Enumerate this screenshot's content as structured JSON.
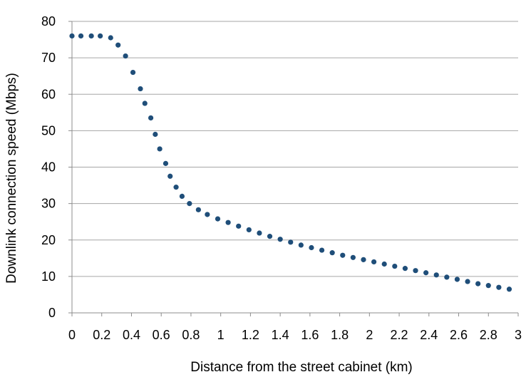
{
  "chart_data": {
    "type": "scatter",
    "title": "",
    "xlabel": "Distance from the street cabinet (km)",
    "ylabel": "Downlink connection speed (Mbps)",
    "xlim": [
      0,
      3
    ],
    "ylim": [
      0,
      80
    ],
    "xticks": [
      "0",
      "0.2",
      "0.4",
      "0.6",
      "0.8",
      "1",
      "1.2",
      "1.4",
      "1.6",
      "1.8",
      "2",
      "2.2",
      "2.4",
      "2.6",
      "2.8",
      "3"
    ],
    "yticks": [
      "0",
      "10",
      "20",
      "30",
      "40",
      "50",
      "60",
      "70",
      "80"
    ],
    "grid": "horizontal",
    "legend": "none",
    "marker_color": "#1F4E79",
    "series": [
      {
        "x": [
          0.0,
          0.06,
          0.13,
          0.19,
          0.26,
          0.31,
          0.36,
          0.41,
          0.46,
          0.49,
          0.53,
          0.56,
          0.59,
          0.63,
          0.66,
          0.7,
          0.74,
          0.79,
          0.85,
          0.91,
          0.98,
          1.05,
          1.12,
          1.19,
          1.26,
          1.33,
          1.4,
          1.47,
          1.54,
          1.61,
          1.68,
          1.75,
          1.82,
          1.89,
          1.96,
          2.03,
          2.1,
          2.17,
          2.24,
          2.31,
          2.38,
          2.45,
          2.52,
          2.59,
          2.66,
          2.73,
          2.8,
          2.87,
          2.94
        ],
        "y": [
          76,
          76,
          76,
          76,
          75.5,
          73.5,
          70.5,
          66,
          61.5,
          57.5,
          53.5,
          49,
          45,
          41,
          37.5,
          34.5,
          32,
          30,
          28.3,
          27,
          25.8,
          24.8,
          23.8,
          22.8,
          21.9,
          21,
          20.2,
          19.4,
          18.6,
          17.9,
          17.2,
          16.5,
          15.8,
          15.2,
          14.6,
          14,
          13.4,
          12.8,
          12.2,
          11.6,
          11,
          10.4,
          9.8,
          9.2,
          8.6,
          8,
          7.5,
          7.0,
          6.5
        ]
      }
    ]
  }
}
